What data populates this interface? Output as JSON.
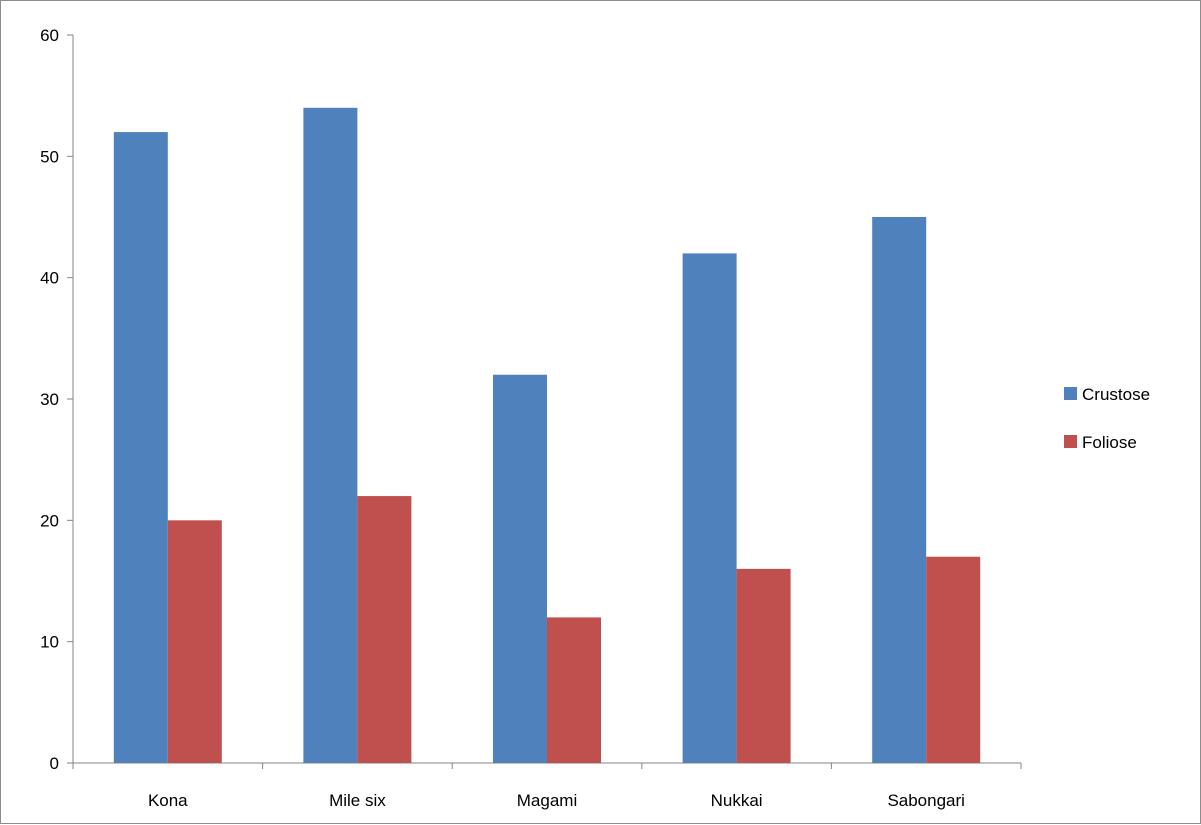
{
  "chart_data": {
    "type": "bar",
    "title": "",
    "xlabel": "",
    "ylabel": "",
    "categories": [
      "Kona",
      "Mile six",
      "Magami",
      "Nukkai",
      "Sabongari"
    ],
    "series": [
      {
        "name": "Crustose",
        "values": [
          52,
          54,
          32,
          42,
          45
        ],
        "color": "#4f81bd"
      },
      {
        "name": "Foliose",
        "values": [
          20,
          22,
          12,
          16,
          17
        ],
        "color": "#c0504d"
      }
    ],
    "ylim": [
      0,
      60
    ],
    "yticks": [
      0,
      10,
      20,
      30,
      40,
      50,
      60
    ],
    "grid": false,
    "legend_position": "right"
  }
}
